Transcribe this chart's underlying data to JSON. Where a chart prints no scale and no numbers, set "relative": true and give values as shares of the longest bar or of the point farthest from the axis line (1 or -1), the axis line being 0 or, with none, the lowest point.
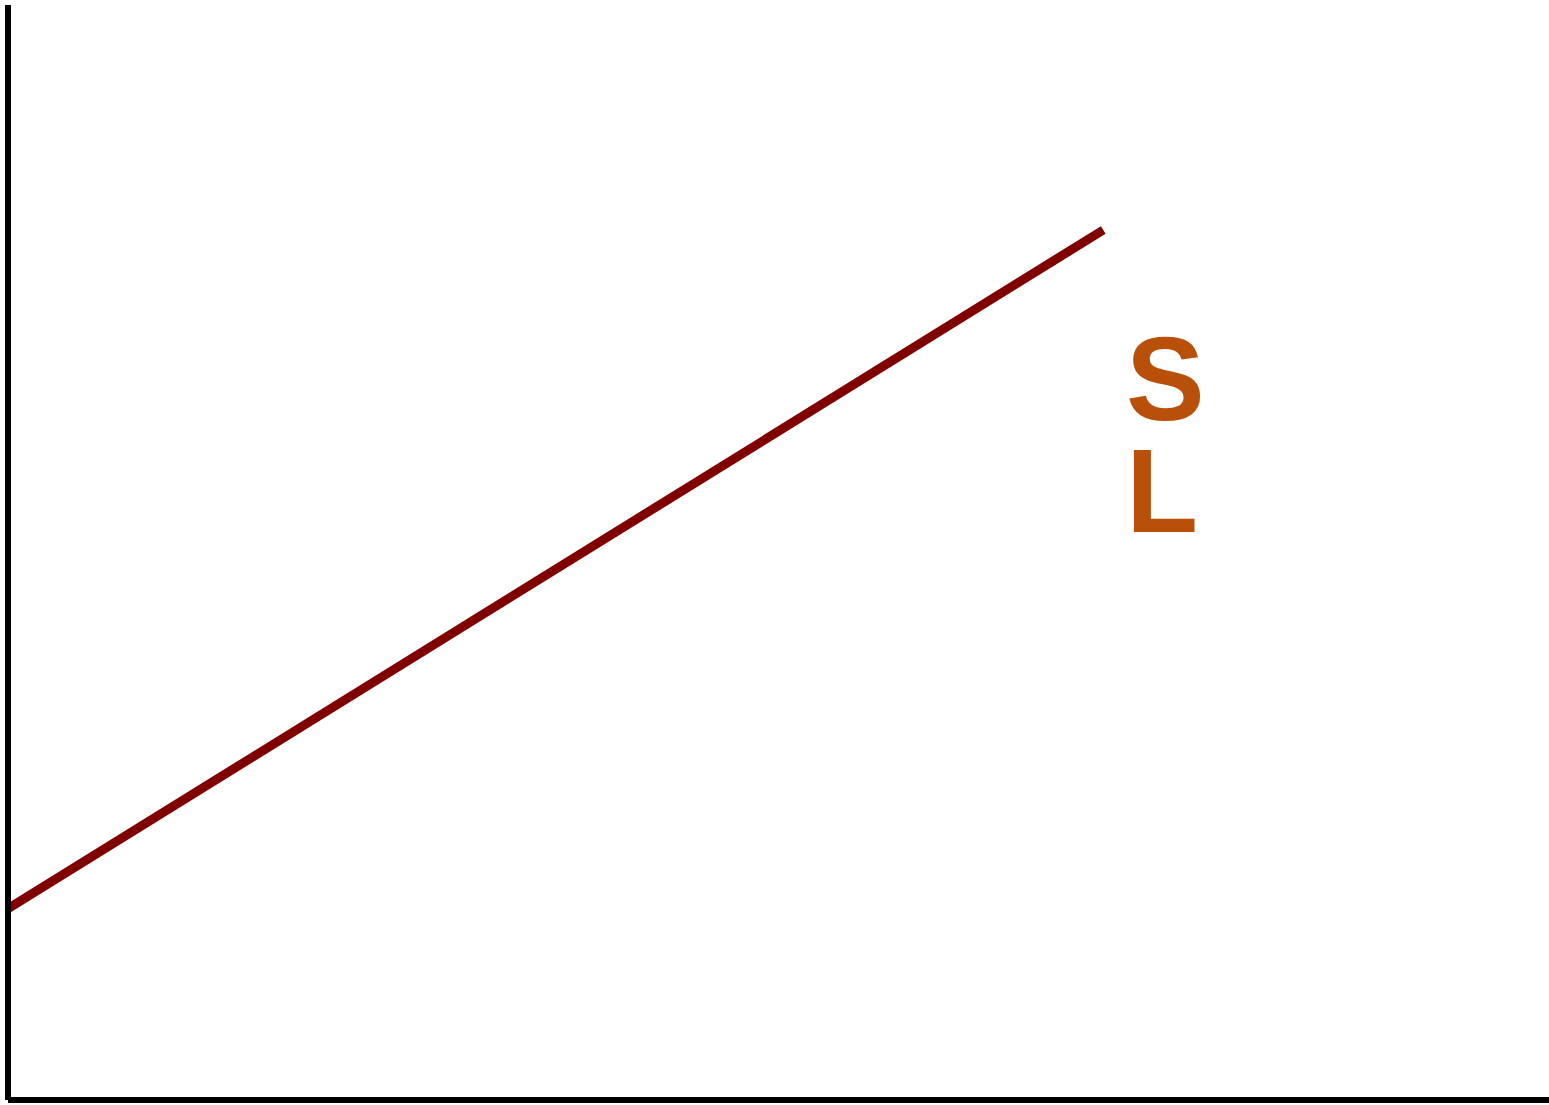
{
  "chart_data": {
    "type": "line",
    "relative": true,
    "categories": [
      null,
      null
    ],
    "series": [
      {
        "color": "#800000",
        "values": [
          0.22,
          1
        ]
      }
    ],
    "annotations": [
      "S",
      "L"
    ]
  }
}
